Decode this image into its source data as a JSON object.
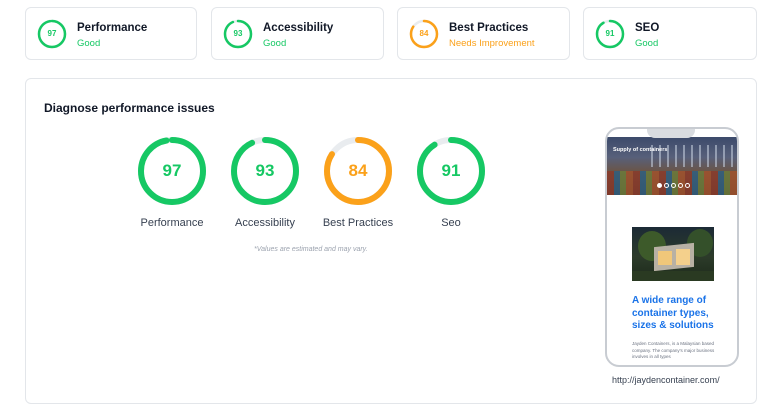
{
  "summary": [
    {
      "score": "97",
      "title": "Performance",
      "status": "Good",
      "color": "#16c864",
      "fraction": 0.97
    },
    {
      "score": "93",
      "title": "Accessibility",
      "status": "Good",
      "color": "#16c864",
      "fraction": 0.93
    },
    {
      "score": "84",
      "title": "Best Practices",
      "status": "Needs Improvement",
      "color": "#fba11a",
      "fraction": 0.84
    },
    {
      "score": "91",
      "title": "SEO",
      "status": "Good",
      "color": "#16c864",
      "fraction": 0.91
    }
  ],
  "panel": {
    "title": "Diagnose performance issues",
    "gauges": [
      {
        "score": "97",
        "label": "Performance",
        "color": "#16c864",
        "fraction": 0.97
      },
      {
        "score": "93",
        "label": "Accessibility",
        "color": "#16c864",
        "fraction": 0.93
      },
      {
        "score": "84",
        "label": "Best Practices",
        "color": "#fba11a",
        "fraction": 0.84
      },
      {
        "score": "91",
        "label": "Seo",
        "color": "#16c864",
        "fraction": 0.91
      }
    ],
    "disclaimer": "*Values are estimated and may vary."
  },
  "preview": {
    "hero_caption": "Supply of containers",
    "slide_count": 5,
    "active_slide": 1,
    "heading": "A wide range of container types, sizes & solutions",
    "body": "Jayden Containers, is a Malaysian based company. The company's major business involves in all types",
    "url": "http://jaydencontainer.com/"
  },
  "colors": {
    "good": "#16c864",
    "needs_improvement": "#fba11a",
    "track": "#e9ecef",
    "link": "#1a73e8"
  }
}
